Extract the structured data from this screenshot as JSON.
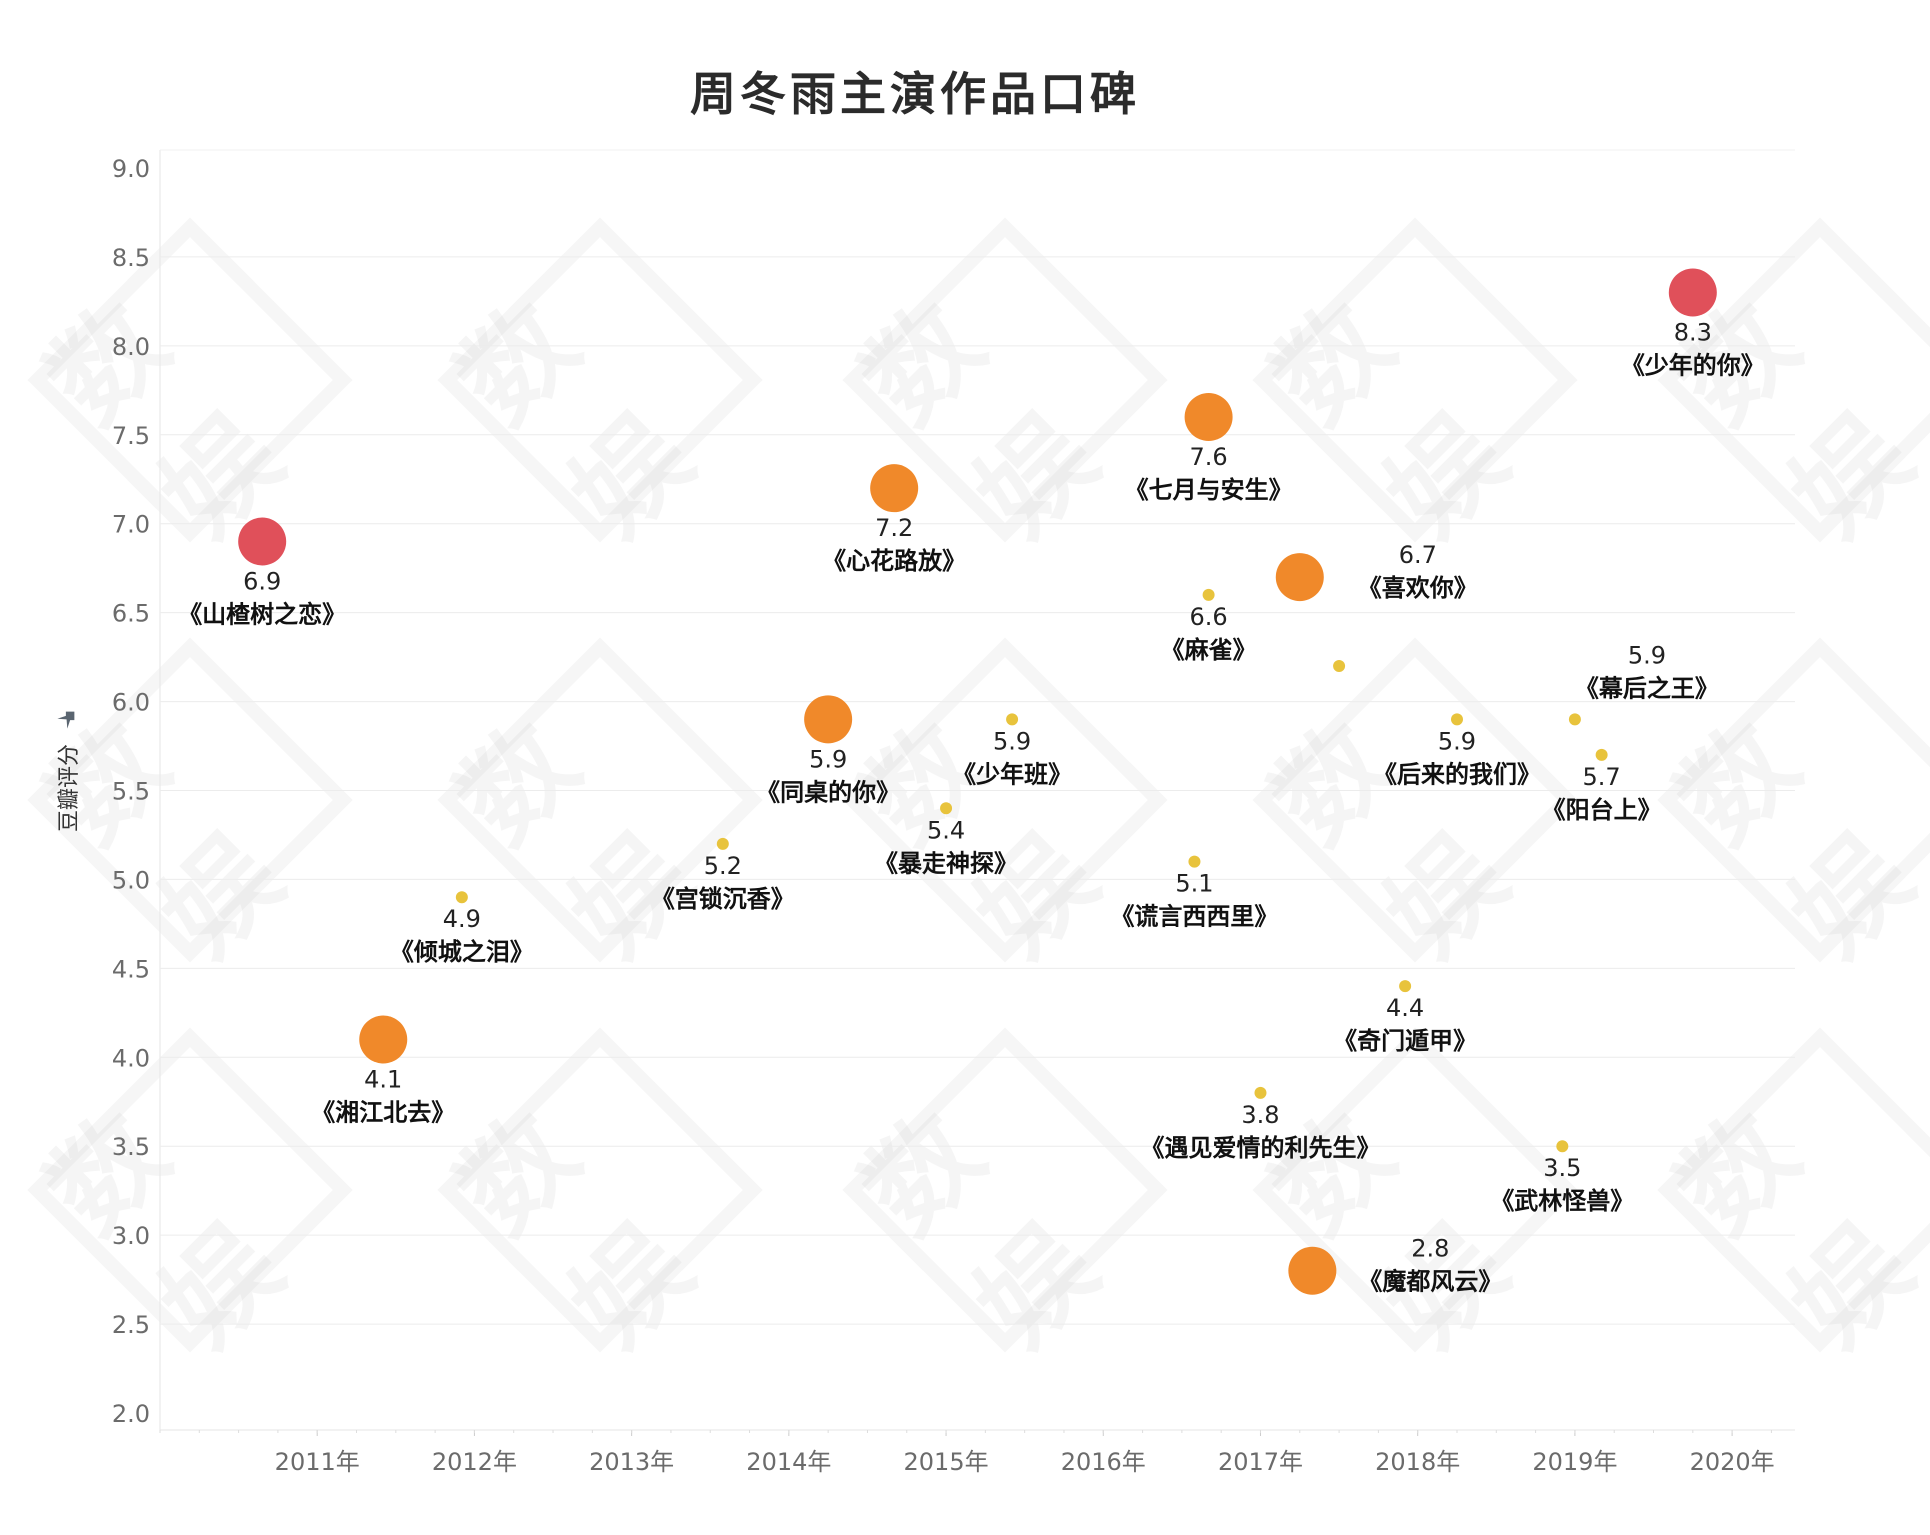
{
  "title": "周冬雨主演作品口碑",
  "watermark_text": "数娱",
  "chart_data": {
    "type": "scatter",
    "title": "周冬雨主演作品口碑",
    "ylabel": "豆瓣评分",
    "xlabel": "",
    "ylim": [
      2.0,
      9.0
    ],
    "y_ticks": [
      "9.0",
      "8.5",
      "8.0",
      "7.5",
      "7.0",
      "6.5",
      "6.0",
      "5.5",
      "5.0",
      "4.5",
      "4.0",
      "3.5",
      "3.0",
      "2.5",
      "2.0"
    ],
    "xlim": [
      2010.0,
      2020.4
    ],
    "x_ticks": [
      {
        "year": 2011,
        "label": "2011年"
      },
      {
        "year": 2012,
        "label": "2012年"
      },
      {
        "year": 2013,
        "label": "2013年"
      },
      {
        "year": 2014,
        "label": "2014年"
      },
      {
        "year": 2015,
        "label": "2015年"
      },
      {
        "year": 2016,
        "label": "2016年"
      },
      {
        "year": 2017,
        "label": "2017年"
      },
      {
        "year": 2018,
        "label": "2018年"
      },
      {
        "year": 2019,
        "label": "2019年"
      },
      {
        "year": 2020,
        "label": "2020年"
      }
    ],
    "size_legend": {
      "large": "large circle",
      "small": "small dot"
    },
    "colors": {
      "red": "#e0505a",
      "orange": "#f0892a",
      "yellow": "#e8c33c"
    },
    "points": [
      {
        "x": 2010.65,
        "y": 6.9,
        "value": "6.9",
        "title": "《山楂树之恋》",
        "size": "large",
        "color": "red",
        "label_pos": "below"
      },
      {
        "x": 2011.42,
        "y": 4.1,
        "value": "4.1",
        "title": "《湘江北去》",
        "size": "large",
        "color": "orange",
        "label_pos": "below"
      },
      {
        "x": 2011.92,
        "y": 4.9,
        "value": "4.9",
        "title": "《倾城之泪》",
        "size": "small",
        "color": "yellow",
        "label_pos": "below"
      },
      {
        "x": 2013.58,
        "y": 5.2,
        "value": "5.2",
        "title": "《宫锁沉香》",
        "size": "small",
        "color": "yellow",
        "label_pos": "below"
      },
      {
        "x": 2014.25,
        "y": 5.9,
        "value": "5.9",
        "title": "《同桌的你》",
        "size": "large",
        "color": "orange",
        "label_pos": "below"
      },
      {
        "x": 2014.67,
        "y": 7.2,
        "value": "7.2",
        "title": "《心花路放》",
        "size": "large",
        "color": "orange",
        "label_pos": "below"
      },
      {
        "x": 2015.0,
        "y": 5.4,
        "value": "5.4",
        "title": "《暴走神探》",
        "size": "small",
        "color": "yellow",
        "label_pos": "below"
      },
      {
        "x": 2015.42,
        "y": 5.9,
        "value": "5.9",
        "title": "《少年班》",
        "size": "small",
        "color": "yellow",
        "label_pos": "below"
      },
      {
        "x": 2016.58,
        "y": 5.1,
        "value": "5.1",
        "title": "《谎言西西里》",
        "size": "small",
        "color": "yellow",
        "label_pos": "below"
      },
      {
        "x": 2016.67,
        "y": 6.6,
        "value": "6.6",
        "title": "《麻雀》",
        "size": "small",
        "color": "yellow",
        "label_pos": "below"
      },
      {
        "x": 2016.67,
        "y": 7.6,
        "value": "7.6",
        "title": "《七月与安生》",
        "size": "large",
        "color": "orange",
        "label_pos": "below"
      },
      {
        "x": 2017.0,
        "y": 3.8,
        "value": "3.8",
        "title": "《遇见爱情的利先生》",
        "size": "small",
        "color": "yellow",
        "label_pos": "below"
      },
      {
        "x": 2017.25,
        "y": 6.7,
        "value": "6.7",
        "title": "《喜欢你》",
        "size": "large",
        "color": "orange",
        "label_pos": "right"
      },
      {
        "x": 2017.33,
        "y": 2.8,
        "value": "2.8",
        "title": "《魔都风云》",
        "size": "large",
        "color": "orange",
        "label_pos": "right"
      },
      {
        "x": 2017.5,
        "y": 6.2,
        "value": "",
        "title": "",
        "size": "small",
        "color": "yellow",
        "label_pos": "none"
      },
      {
        "x": 2017.92,
        "y": 4.4,
        "value": "4.4",
        "title": "《奇门遁甲》",
        "size": "small",
        "color": "yellow",
        "label_pos": "below"
      },
      {
        "x": 2018.25,
        "y": 5.9,
        "value": "5.9",
        "title": "《后来的我们》",
        "size": "small",
        "color": "yellow",
        "label_pos": "below"
      },
      {
        "x": 2018.92,
        "y": 3.5,
        "value": "3.5",
        "title": "《武林怪兽》",
        "size": "small",
        "color": "yellow",
        "label_pos": "below"
      },
      {
        "x": 2019.0,
        "y": 5.9,
        "value": "5.9",
        "title": "《幕后之王》",
        "size": "small",
        "color": "yellow",
        "label_pos": "above-right"
      },
      {
        "x": 2019.17,
        "y": 5.7,
        "value": "5.7",
        "title": "《阳台上》",
        "size": "small",
        "color": "yellow",
        "label_pos": "below"
      },
      {
        "x": 2019.75,
        "y": 8.3,
        "value": "8.3",
        "title": "《少年的你》",
        "size": "large",
        "color": "red",
        "label_pos": "below"
      }
    ]
  }
}
